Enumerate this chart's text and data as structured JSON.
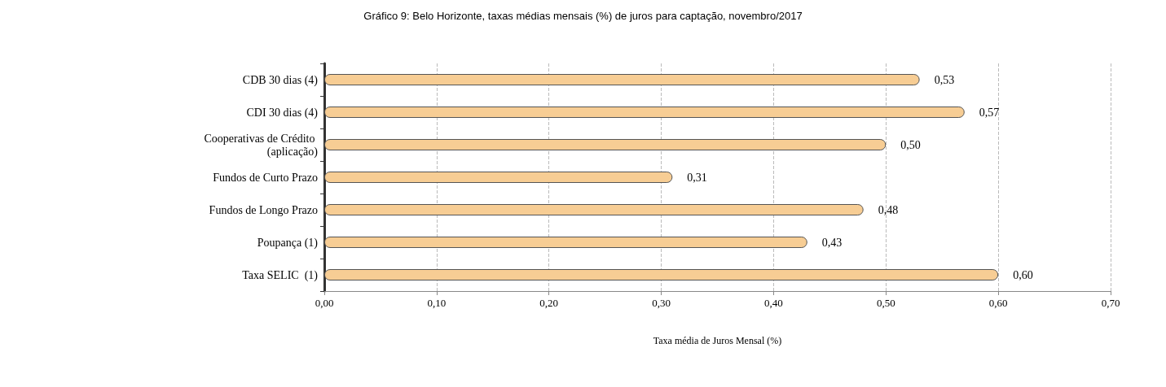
{
  "chart_data": {
    "type": "bar",
    "orientation": "horizontal",
    "title": "Gráfico 9: Belo Horizonte, taxas médias mensais (%) de juros para captação, novembro/2017",
    "xlabel": "Taxa média de Juros Mensal (%)",
    "categories": [
      "CDB 30 dias (4)",
      "CDI 30 dias (4)",
      "Cooperativas de Crédito (aplicação)",
      "Fundos de Curto Prazo",
      "Fundos de Longo Prazo",
      "Poupança (1)",
      "Taxa SELIC  (1)"
    ],
    "values": [
      0.53,
      0.57,
      0.5,
      0.31,
      0.48,
      0.43,
      0.6
    ],
    "value_labels": [
      "0,53",
      "0,57",
      "0,50",
      "0,31",
      "0,48",
      "0,43",
      "0,60"
    ],
    "color": "#f7cd94",
    "xlim": [
      0,
      0.7
    ],
    "xticks": [
      {
        "value": 0,
        "label": "0,00"
      },
      {
        "value": 0.1,
        "label": "0,10"
      },
      {
        "value": 0.2,
        "label": "0,20"
      },
      {
        "value": 0.3,
        "label": "0,30"
      },
      {
        "value": 0.4,
        "label": "0,40"
      },
      {
        "value": 0.5,
        "label": "0,50"
      },
      {
        "value": 0.6,
        "label": "0,60"
      },
      {
        "value": 0.7,
        "label": "0,70"
      }
    ],
    "grid": "x"
  }
}
